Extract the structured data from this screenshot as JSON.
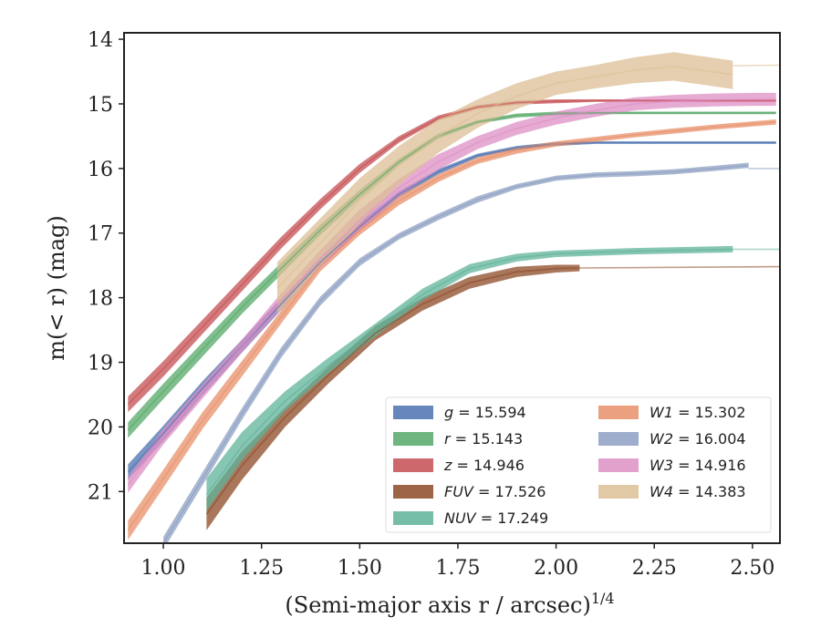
{
  "chart_data": {
    "type": "line",
    "xlabel": "(Semi-major axis r / arcsec)",
    "xlabel_sup": "1/4",
    "ylabel": "m(< r) (mag)",
    "xlim": [
      0.9,
      2.57
    ],
    "ylim": [
      21.8,
      13.9
    ],
    "y_inverted": true,
    "xticks": [
      1.0,
      1.25,
      1.5,
      1.75,
      2.0,
      2.25,
      2.5
    ],
    "xtick_labels": [
      "1.00",
      "1.25",
      "1.50",
      "1.75",
      "2.00",
      "2.25",
      "2.50"
    ],
    "yticks": [
      14,
      15,
      16,
      17,
      18,
      19,
      20,
      21
    ],
    "ytick_labels": [
      "14",
      "15",
      "16",
      "17",
      "18",
      "19",
      "20",
      "21"
    ],
    "grid": false,
    "legend_position": "lower-right",
    "legend_columns": 2,
    "series": [
      {
        "name": "g = 15.594",
        "label_var": "g",
        "label_val": "= 15.594",
        "color": "#4c72b0",
        "x": [
          0.91,
          1.0,
          1.1,
          1.2,
          1.3,
          1.4,
          1.5,
          1.6,
          1.7,
          1.8,
          1.9,
          2.0,
          2.1,
          2.2,
          2.3,
          2.4,
          2.56
        ],
        "y": [
          20.7,
          20.1,
          19.4,
          18.75,
          18.1,
          17.45,
          16.9,
          16.4,
          16.05,
          15.8,
          15.68,
          15.62,
          15.6,
          15.6,
          15.6,
          15.6,
          15.6
        ],
        "band": [
          0.12,
          0.12,
          0.11,
          0.1,
          0.09,
          0.08,
          0.07,
          0.05,
          0.04,
          0.03,
          0.03,
          0.03,
          0.02,
          0.02,
          0.02,
          0.02,
          0.02
        ],
        "extension": null
      },
      {
        "name": "r = 15.143",
        "label_var": "r",
        "label_val": "= 15.143",
        "color": "#55a868",
        "x": [
          0.91,
          1.0,
          1.1,
          1.2,
          1.3,
          1.4,
          1.5,
          1.6,
          1.7,
          1.8,
          1.9,
          2.0,
          2.1,
          2.2,
          2.3,
          2.4,
          2.56
        ],
        "y": [
          20.05,
          19.45,
          18.8,
          18.15,
          17.55,
          16.95,
          16.4,
          15.9,
          15.5,
          15.28,
          15.18,
          15.15,
          15.14,
          15.14,
          15.14,
          15.14,
          15.14
        ],
        "band": [
          0.12,
          0.12,
          0.11,
          0.1,
          0.09,
          0.08,
          0.07,
          0.05,
          0.04,
          0.03,
          0.03,
          0.03,
          0.02,
          0.02,
          0.02,
          0.02,
          0.02
        ],
        "extension": null
      },
      {
        "name": "z = 14.946",
        "label_var": "z",
        "label_val": "= 14.946",
        "color": "#c44e52",
        "x": [
          0.91,
          1.0,
          1.1,
          1.2,
          1.3,
          1.4,
          1.5,
          1.6,
          1.7,
          1.8,
          1.9,
          2.0,
          2.1,
          2.2,
          2.3,
          2.4,
          2.56
        ],
        "y": [
          19.65,
          19.1,
          18.45,
          17.8,
          17.15,
          16.55,
          16.0,
          15.55,
          15.22,
          15.05,
          14.98,
          14.96,
          14.95,
          14.95,
          14.95,
          14.95,
          14.95
        ],
        "band": [
          0.12,
          0.12,
          0.11,
          0.1,
          0.09,
          0.08,
          0.07,
          0.05,
          0.04,
          0.03,
          0.03,
          0.03,
          0.02,
          0.02,
          0.02,
          0.02,
          0.02
        ],
        "extension": null
      },
      {
        "name": "FUV = 17.526",
        "label_var": "FUV",
        "label_val": "= 17.526",
        "color": "#8c4a26",
        "x": [
          1.11,
          1.2,
          1.31,
          1.42,
          1.54,
          1.66,
          1.78,
          1.9,
          2.0,
          2.06
        ],
        "y": [
          21.35,
          20.6,
          19.85,
          19.2,
          18.55,
          18.1,
          17.77,
          17.6,
          17.55,
          17.54
        ],
        "band": [
          0.25,
          0.22,
          0.15,
          0.13,
          0.11,
          0.1,
          0.09,
          0.08,
          0.06,
          0.05
        ],
        "extension": {
          "x": [
            2.06,
            2.57
          ],
          "y": [
            17.54,
            17.52
          ]
        }
      },
      {
        "name": "NUV = 17.249",
        "label_var": "NUV",
        "label_val": "= 17.249",
        "color": "#5fb39a",
        "x": [
          1.11,
          1.2,
          1.31,
          1.42,
          1.54,
          1.66,
          1.78,
          1.9,
          2.0,
          2.2,
          2.45
        ],
        "y": [
          21.05,
          20.3,
          19.6,
          19.05,
          18.5,
          17.95,
          17.55,
          17.38,
          17.32,
          17.28,
          17.25
        ],
        "band": [
          0.25,
          0.22,
          0.15,
          0.12,
          0.1,
          0.09,
          0.07,
          0.06,
          0.05,
          0.05,
          0.05
        ],
        "extension": {
          "x": [
            2.45,
            2.57
          ],
          "y": [
            17.25,
            17.25
          ]
        }
      },
      {
        "name": "W1 = 15.302",
        "label_var": "W1",
        "label_val": "= 15.302",
        "color": "#e8906a",
        "x": [
          0.91,
          1.0,
          1.1,
          1.2,
          1.3,
          1.4,
          1.5,
          1.6,
          1.7,
          1.8,
          1.9,
          2.0,
          2.1,
          2.2,
          2.3,
          2.4,
          2.5,
          2.56
        ],
        "y": [
          21.6,
          20.8,
          19.9,
          19.1,
          18.3,
          17.5,
          16.95,
          16.5,
          16.15,
          15.88,
          15.72,
          15.62,
          15.55,
          15.48,
          15.42,
          15.36,
          15.31,
          15.28
        ],
        "band": [
          0.15,
          0.14,
          0.13,
          0.12,
          0.1,
          0.09,
          0.08,
          0.07,
          0.06,
          0.05,
          0.05,
          0.04,
          0.04,
          0.04,
          0.04,
          0.04,
          0.04,
          0.04
        ],
        "extension": null
      },
      {
        "name": "W2 = 16.004",
        "label_var": "W2",
        "label_val": "= 16.004",
        "color": "#8c9fc2",
        "x": [
          1.0,
          1.1,
          1.2,
          1.3,
          1.4,
          1.5,
          1.6,
          1.7,
          1.8,
          1.9,
          2.0,
          2.1,
          2.2,
          2.3,
          2.4,
          2.49
        ],
        "y": [
          21.8,
          20.8,
          19.8,
          18.85,
          18.05,
          17.45,
          17.05,
          16.75,
          16.48,
          16.28,
          16.15,
          16.1,
          16.08,
          16.05,
          16.0,
          15.95
        ],
        "band": [
          0.1,
          0.1,
          0.09,
          0.08,
          0.07,
          0.06,
          0.05,
          0.05,
          0.05,
          0.04,
          0.04,
          0.04,
          0.04,
          0.04,
          0.04,
          0.04
        ],
        "extension": {
          "x": [
            2.49,
            2.57
          ],
          "y": [
            16.0,
            16.0
          ]
        }
      },
      {
        "name": "W3 = 14.916",
        "label_var": "W3",
        "label_val": "= 14.916",
        "color": "#dd8fc4",
        "x": [
          0.91,
          1.0,
          1.1,
          1.2,
          1.3,
          1.4,
          1.5,
          1.6,
          1.7,
          1.8,
          1.9,
          2.0,
          2.1,
          2.2,
          2.3,
          2.4,
          2.5,
          2.56
        ],
        "y": [
          20.9,
          20.15,
          19.45,
          18.75,
          18.05,
          17.4,
          16.8,
          16.3,
          15.9,
          15.6,
          15.38,
          15.22,
          15.1,
          15.0,
          14.96,
          14.94,
          14.93,
          14.93
        ],
        "band": [
          0.12,
          0.12,
          0.11,
          0.1,
          0.12,
          0.14,
          0.16,
          0.14,
          0.12,
          0.1,
          0.1,
          0.1,
          0.1,
          0.1,
          0.1,
          0.1,
          0.1,
          0.1
        ],
        "extension": null
      },
      {
        "name": "W4 = 14.383",
        "label_var": "W4",
        "label_val": "= 14.383",
        "color": "#dcbf95",
        "x": [
          1.29,
          1.4,
          1.5,
          1.6,
          1.7,
          1.8,
          1.9,
          2.0,
          2.1,
          2.2,
          2.3,
          2.45
        ],
        "y": [
          17.85,
          17.15,
          16.5,
          15.95,
          15.5,
          15.15,
          14.88,
          14.68,
          14.58,
          14.48,
          14.42,
          14.55
        ],
        "band": [
          0.4,
          0.38,
          0.35,
          0.3,
          0.26,
          0.22,
          0.2,
          0.18,
          0.18,
          0.2,
          0.22,
          0.22
        ],
        "extension": {
          "x": [
            2.45,
            2.57
          ],
          "y": [
            14.41,
            14.4
          ]
        }
      }
    ]
  }
}
